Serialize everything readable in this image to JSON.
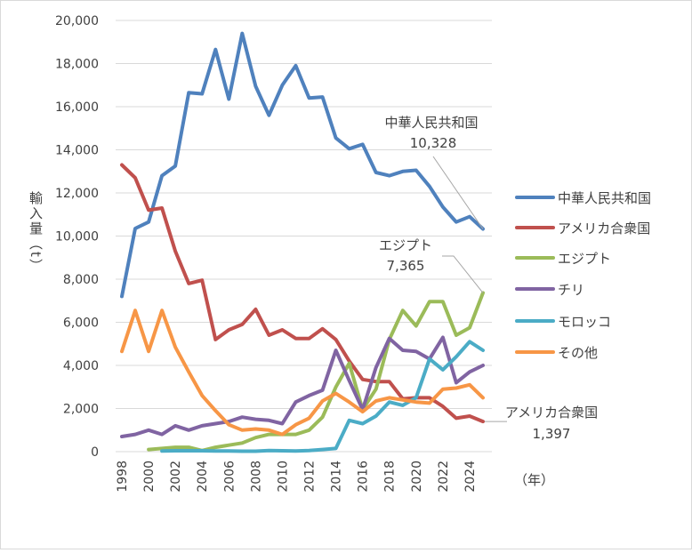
{
  "chart_data": {
    "type": "line",
    "title": "",
    "xlabel": "（年）",
    "ylabel": "輸入量（t）",
    "ylim": [
      0,
      20000
    ],
    "ytick_step": 2000,
    "yticks": [
      "0",
      "2,000",
      "4,000",
      "6,000",
      "8,000",
      "10,000",
      "12,000",
      "14,000",
      "16,000",
      "18,000",
      "20,000"
    ],
    "xticks": [
      "1998",
      "2000",
      "2002",
      "2004",
      "2006",
      "2008",
      "2010",
      "2012",
      "2014",
      "2016",
      "2018",
      "2020",
      "2022",
      "2024"
    ],
    "x": [
      1998,
      1999,
      2000,
      2001,
      2002,
      2003,
      2004,
      2005,
      2006,
      2007,
      2008,
      2009,
      2010,
      2011,
      2012,
      2013,
      2014,
      2015,
      2016,
      2017,
      2018,
      2019,
      2020,
      2021,
      2022,
      2023,
      2024,
      2025
    ],
    "grid": true,
    "legend_position": "right",
    "series": [
      {
        "name": "中華人民共和国",
        "color": "#4F81BD",
        "values": [
          7200,
          10350,
          10650,
          12800,
          13250,
          16650,
          16600,
          18650,
          16350,
          19400,
          16950,
          15600,
          17000,
          17900,
          16400,
          16450,
          14550,
          14050,
          14250,
          12950,
          12800,
          13000,
          13050,
          12300,
          11350,
          10650,
          10900,
          10328
        ]
      },
      {
        "name": "アメリカ合衆国",
        "color": "#C0504D",
        "values": [
          13300,
          12700,
          11200,
          11300,
          9300,
          7800,
          7950,
          5200,
          5650,
          5900,
          6600,
          5400,
          5650,
          5250,
          5250,
          5700,
          5200,
          4200,
          3350,
          3250,
          3250,
          2450,
          2500,
          2500,
          2100,
          1550,
          1650,
          1397
        ]
      },
      {
        "name": "エジプト",
        "color": "#9BBB59",
        "values": [
          null,
          null,
          100,
          150,
          200,
          200,
          50,
          200,
          300,
          400,
          650,
          800,
          800,
          800,
          1000,
          1600,
          3000,
          4100,
          1950,
          2900,
          5200,
          6550,
          5830,
          6960,
          6960,
          5400,
          5750,
          7365
        ]
      },
      {
        "name": "チリ",
        "color": "#8064A2",
        "values": [
          700,
          800,
          1000,
          800,
          1200,
          1000,
          1200,
          1300,
          1400,
          1600,
          1500,
          1450,
          1300,
          2300,
          2600,
          2850,
          4700,
          3300,
          1950,
          3900,
          5250,
          4700,
          4650,
          4300,
          5300,
          3200,
          3700,
          4000
        ]
      },
      {
        "name": "モロッコ",
        "color": "#4BACC6",
        "values": [
          null,
          null,
          null,
          30,
          40,
          40,
          40,
          30,
          30,
          20,
          20,
          50,
          40,
          30,
          50,
          100,
          150,
          1450,
          1300,
          1650,
          2300,
          2150,
          2500,
          4300,
          3800,
          4400,
          5100,
          4700
        ]
      },
      {
        "name": "その他",
        "color": "#F79646",
        "values": [
          4650,
          6550,
          4650,
          6550,
          4850,
          3700,
          2600,
          1900,
          1250,
          1000,
          1050,
          1000,
          800,
          1250,
          1550,
          2350,
          2700,
          2300,
          1850,
          2350,
          2500,
          2400,
          2300,
          2250,
          2900,
          2950,
          3100,
          2500
        ]
      }
    ],
    "annotations": [
      {
        "series": "中華人民共和国",
        "label": "中華人民共和国",
        "value": "10,328"
      },
      {
        "series": "エジプト",
        "label": "エジプト",
        "value": "7,365"
      },
      {
        "series": "アメリカ合衆国",
        "label": "アメリカ合衆国",
        "value": "1,397"
      }
    ]
  }
}
